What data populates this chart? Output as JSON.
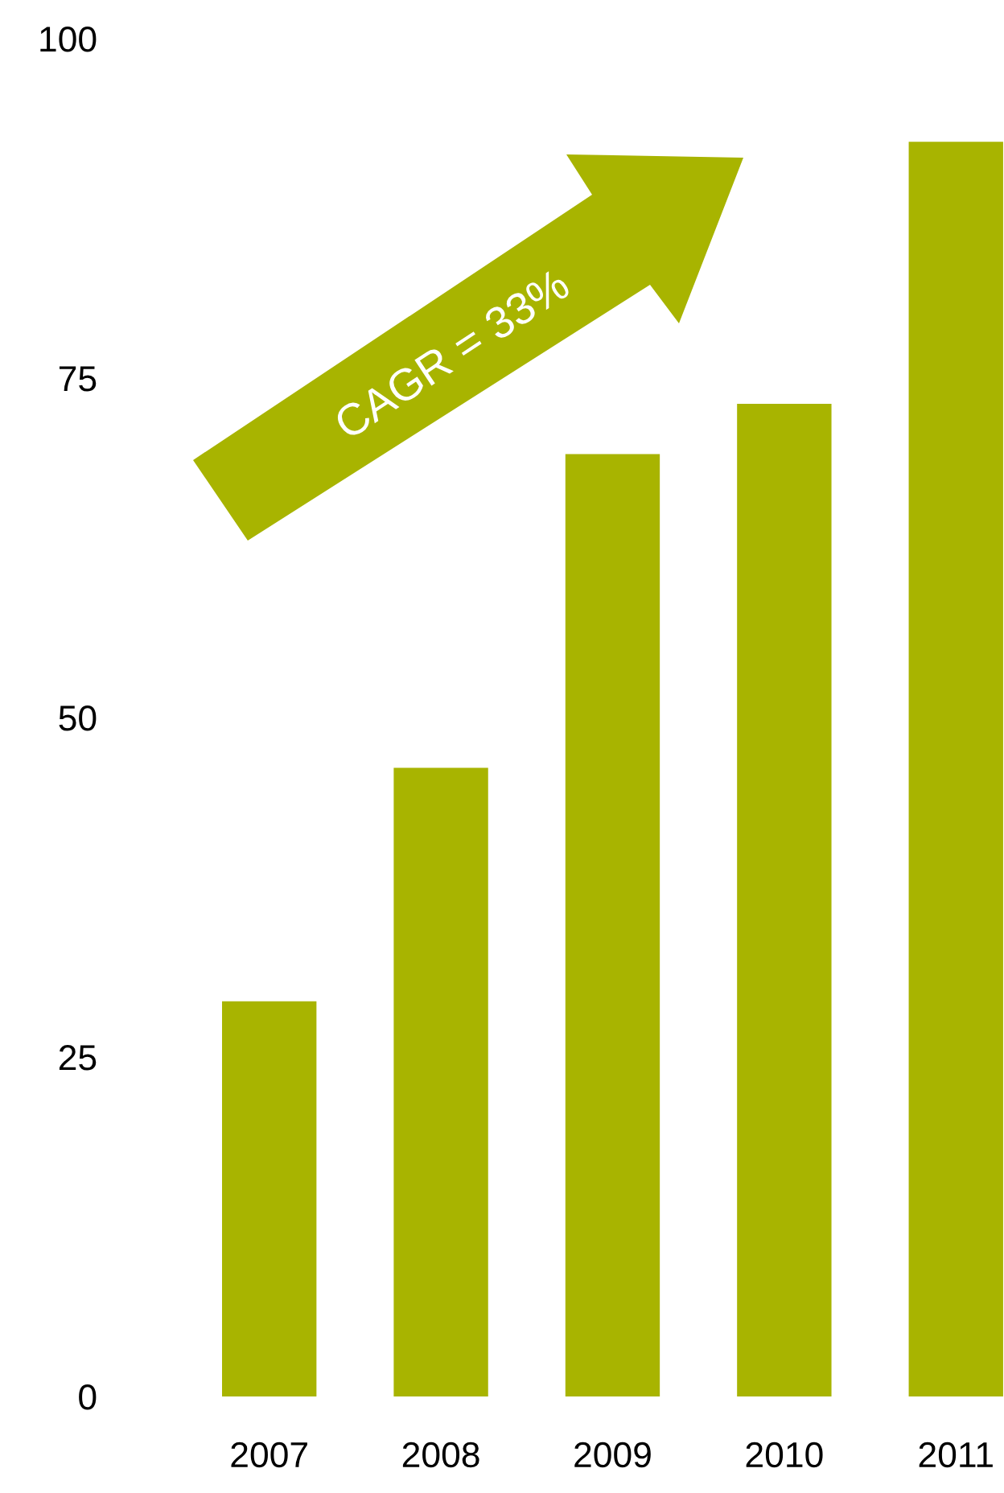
{
  "chart_data": {
    "type": "bar",
    "categories": [
      "2007",
      "2008",
      "2009",
      "2010",
      "2011"
    ],
    "values": [
      29.1,
      46.3,
      69.4,
      73.1,
      92.4
    ],
    "color": "#a8b400",
    "ylim": [
      0,
      100
    ],
    "yticks": [
      0,
      25,
      50,
      75,
      100
    ],
    "grid": false,
    "legend": false,
    "annotations": [
      "CAGR = 33%"
    ]
  }
}
